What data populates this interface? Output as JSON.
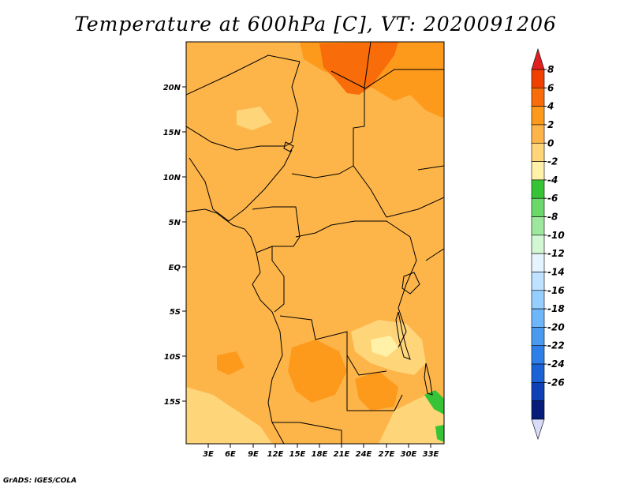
{
  "title": "Temperature at 600hPa [C], VT: 2020091206",
  "credit": "GrADS: IGES/COLA",
  "map": {
    "lat_labels": [
      "20N",
      "15N",
      "10N",
      "5N",
      "EQ",
      "5S",
      "10S",
      "15S"
    ],
    "lon_labels": [
      "3E",
      "6E",
      "9E",
      "12E",
      "15E",
      "18E",
      "21E",
      "24E",
      "27E",
      "30E",
      "33E"
    ],
    "background_color": "#FDB54A"
  },
  "colorbar": {
    "labels": [
      "8",
      "6",
      "4",
      "2",
      "0",
      "-2",
      "-4",
      "-6",
      "-8",
      "-10",
      "-12",
      "-14",
      "-16",
      "-18",
      "-20",
      "-22",
      "-24",
      "-26"
    ],
    "colors": [
      "#F04000",
      "#F86C0A",
      "#FD9A1C",
      "#FDB54A",
      "#FFD57A",
      "#FFF1A8",
      "#36C436",
      "#6AD96A",
      "#9EE89E",
      "#D2F7D2",
      "#E5F4FF",
      "#BEE2FF",
      "#96CEFF",
      "#6EB6FA",
      "#4A9BF0",
      "#2E7FE8",
      "#1A62D6",
      "#0E40B8",
      "#061C7A"
    ],
    "top_triangle_color": "#E02020",
    "bottom_triangle_color": "#D8DCF8"
  }
}
